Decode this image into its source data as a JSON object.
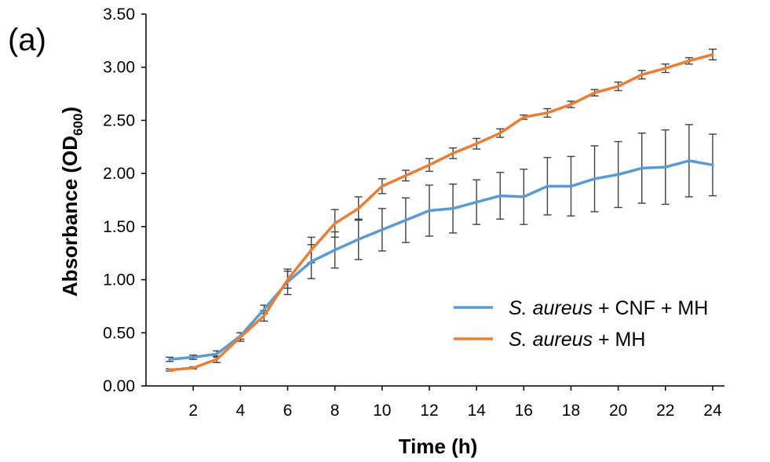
{
  "chart_data": {
    "type": "line",
    "panel_label": "(a)",
    "xlabel": "Time (h)",
    "ylabel_main": "Absorbance (OD",
    "ylabel_sub": "600",
    "ylabel_close": ")",
    "x": [
      1,
      2,
      3,
      4,
      5,
      6,
      7,
      8,
      9,
      10,
      11,
      12,
      13,
      14,
      15,
      16,
      17,
      18,
      19,
      20,
      21,
      22,
      23,
      24
    ],
    "x_ticks": [
      2,
      4,
      6,
      8,
      10,
      12,
      14,
      16,
      18,
      20,
      22,
      24
    ],
    "x_tick_labels": [
      "2",
      "4",
      "6",
      "8",
      "10",
      "12",
      "14",
      "16",
      "18",
      "20",
      "22",
      "24"
    ],
    "xlim": [
      0,
      24.5
    ],
    "ylim": [
      0,
      3.5
    ],
    "y_ticks": [
      0,
      0.5,
      1,
      1.5,
      2,
      2.5,
      3,
      3.5
    ],
    "y_tick_labels": [
      "0.00",
      "0.50",
      "1.00",
      "1.50",
      "2.00",
      "2.50",
      "3.00",
      "3.50"
    ],
    "legend_position": "center-right",
    "series": [
      {
        "name_italic": "S. aureus",
        "name_rest": " + CNF + MH",
        "color": "#5B9BD5",
        "values": [
          0.25,
          0.27,
          0.3,
          0.47,
          0.72,
          0.98,
          1.17,
          1.28,
          1.38,
          1.47,
          1.56,
          1.65,
          1.67,
          1.73,
          1.79,
          1.78,
          1.88,
          1.88,
          1.95,
          1.99,
          2.05,
          2.06,
          2.12,
          2.08
        ],
        "errors": [
          0.02,
          0.02,
          0.03,
          0.03,
          0.04,
          0.12,
          0.16,
          0.17,
          0.19,
          0.2,
          0.21,
          0.24,
          0.23,
          0.21,
          0.22,
          0.26,
          0.27,
          0.28,
          0.31,
          0.31,
          0.33,
          0.35,
          0.34,
          0.29
        ]
      },
      {
        "name_italic": "S. aureus",
        "name_rest": " + MH",
        "color": "#ED7D31",
        "values": [
          0.15,
          0.17,
          0.25,
          0.46,
          0.66,
          1.0,
          1.28,
          1.53,
          1.67,
          1.88,
          1.98,
          2.08,
          2.19,
          2.28,
          2.38,
          2.53,
          2.57,
          2.65,
          2.76,
          2.82,
          2.93,
          2.99,
          3.06,
          3.12
        ],
        "errors": [
          0.01,
          0.01,
          0.03,
          0.04,
          0.05,
          0.08,
          0.12,
          0.13,
          0.11,
          0.07,
          0.05,
          0.06,
          0.05,
          0.05,
          0.04,
          0.02,
          0.04,
          0.03,
          0.03,
          0.04,
          0.04,
          0.04,
          0.03,
          0.05
        ]
      }
    ]
  }
}
